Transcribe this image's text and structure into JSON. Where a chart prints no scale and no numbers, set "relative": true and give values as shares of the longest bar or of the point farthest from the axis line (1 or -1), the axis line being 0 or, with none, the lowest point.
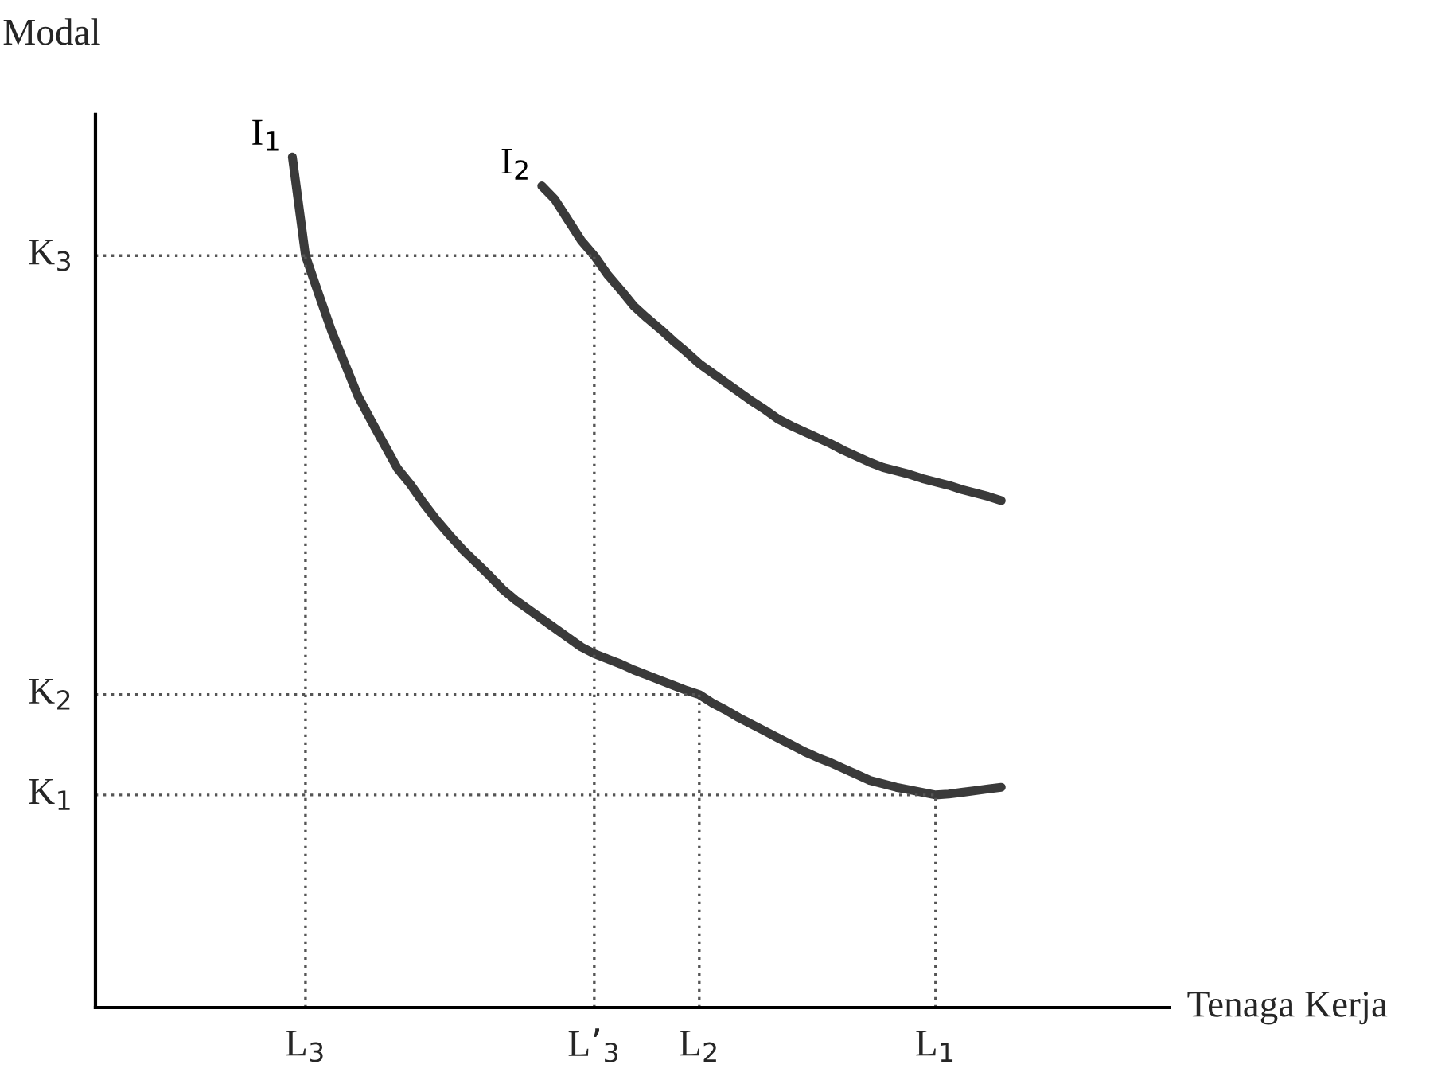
{
  "chart_data": {
    "type": "line",
    "relative": true,
    "xlabel": "Tenaga Kerja",
    "annotations": [
      "Modal"
    ],
    "categories": [
      null,
      null,
      "L$_{3}$",
      null,
      null,
      null,
      null,
      null,
      null,
      null,
      null,
      null,
      null,
      null,
      null,
      null,
      null,
      null,
      null,
      null,
      null,
      null,
      null,
      null,
      "L’$_{3}$",
      null,
      null,
      null,
      null,
      null,
      null,
      null,
      "L$_{2}$",
      null,
      null,
      null,
      null,
      null,
      null,
      null,
      null,
      null,
      null,
      null,
      null,
      null,
      null,
      null,
      null,
      null,
      "L$_{1}$",
      null,
      null,
      null,
      null,
      null
    ],
    "series": [
      {
        "name": "I$_{1}$",
        "color": "#3a3a3a",
        "values": [
          null,
          1.0,
          0.884,
          0.839,
          0.795,
          0.757,
          0.719,
          0.69,
          0.662,
          0.634,
          0.615,
          0.593,
          0.573,
          0.555,
          0.538,
          0.523,
          0.508,
          0.492,
          0.479,
          0.468,
          0.457,
          0.446,
          0.435,
          0.424,
          0.416,
          0.41,
          0.404,
          0.397,
          0.391,
          0.385,
          0.379,
          0.373,
          0.368,
          0.358,
          0.35,
          0.341,
          0.333,
          0.325,
          0.317,
          0.309,
          0.301,
          0.294,
          0.288,
          0.281,
          0.274,
          0.267,
          0.263,
          0.259,
          0.256,
          0.253,
          0.25,
          0.251,
          0.253,
          0.255,
          0.257,
          0.259
        ]
      },
      {
        "name": "I$_{2}$",
        "color": "#3a3a3a",
        "values": [
          null,
          null,
          null,
          null,
          null,
          null,
          null,
          null,
          null,
          null,
          null,
          null,
          null,
          null,
          null,
          null,
          null,
          null,
          null,
          null,
          0.966,
          0.95,
          0.926,
          0.902,
          0.884,
          0.862,
          0.844,
          0.825,
          0.811,
          0.798,
          0.784,
          0.771,
          0.757,
          0.746,
          0.735,
          0.724,
          0.713,
          0.703,
          0.692,
          0.684,
          0.677,
          0.67,
          0.663,
          0.655,
          0.648,
          0.641,
          0.635,
          0.631,
          0.627,
          0.622,
          0.618,
          0.614,
          0.609,
          0.605,
          0.601,
          0.596
        ]
      }
    ],
    "ref_lines": [
      {
        "axis": "x",
        "value": "L$_{3}$",
        "line_style": "dotted"
      },
      {
        "axis": "x",
        "value": "L’$_{3}$",
        "line_style": "dotted"
      },
      {
        "axis": "x",
        "value": "L$_{2}$",
        "line_style": "dotted"
      },
      {
        "axis": "x",
        "value": "L$_{1}$",
        "line_style": "dotted"
      },
      {
        "axis": "y",
        "value": 0.25,
        "label": "K$_{1}$",
        "line_style": "dotted"
      },
      {
        "axis": "y",
        "value": 0.368,
        "label": "K$_{2}$",
        "line_style": "dotted"
      },
      {
        "axis": "y",
        "value": 0.884,
        "label": "K$_{3}$",
        "line_style": "dotted"
      }
    ],
    "grid": false,
    "legend": false
  }
}
